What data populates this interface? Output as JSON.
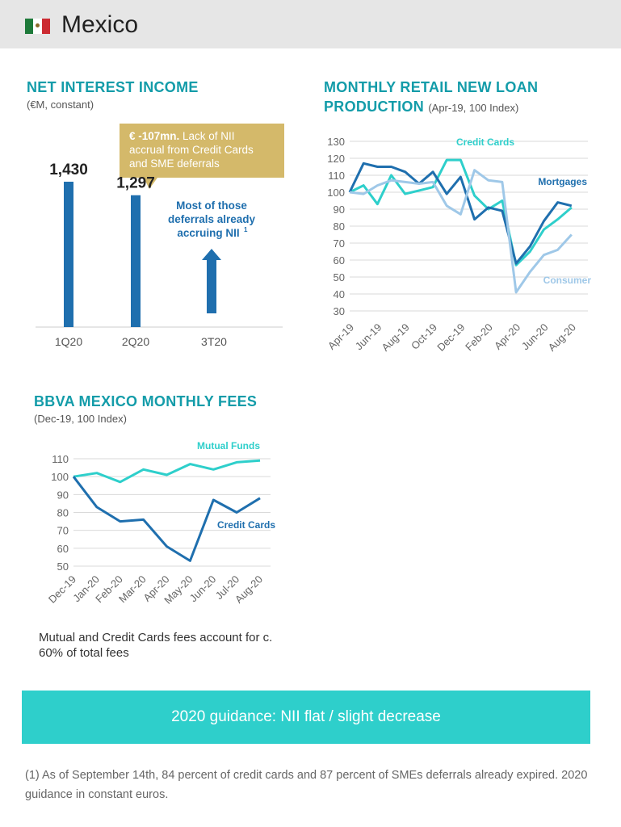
{
  "header": {
    "title": "Mexico",
    "flag_icon": "mexico-flag-icon"
  },
  "nii": {
    "title": "NET INTEREST INCOME",
    "subtitle": "(€M, constant)",
    "callout_bold": "€ -107mn.",
    "callout_text": " Lack of NII accrual from Credit Cards and SME deferrals",
    "arrow_label": [
      "Most of those",
      "deferrals already",
      "accruing NII"
    ],
    "arrow_sup": "1"
  },
  "loans": {
    "title_line1": "MONTHLY RETAIL NEW LOAN",
    "title_line2": "PRODUCTION",
    "subtitle": "(Apr-19, 100 Index)"
  },
  "fees": {
    "title": "BBVA MEXICO MONTHLY FEES",
    "subtitle": "(Dec-19, 100 Index)"
  },
  "note": "Mutual and Credit Cards fees account for c. 60% of total fees",
  "banner": "2020 guidance: NII flat / slight decrease",
  "footnote": "(1) As of September 14th, 84 percent of credit cards and 87 percent of SMEs deferrals already expired. 2020 guidance in constant euros.",
  "colors": {
    "accent": "#139ca9",
    "dark_blue": "#1f6fae",
    "teal": "#2ecfcb",
    "light_blue": "#9fc8e8",
    "gold": "#d4b96a"
  },
  "chart_data": [
    {
      "type": "bar",
      "categories": [
        "1Q20",
        "2Q20",
        "3T20"
      ],
      "values": [
        1430,
        1297,
        null
      ],
      "value_labels": [
        "1,430",
        "1,297",
        ""
      ],
      "ylim": [
        0,
        1600
      ]
    },
    {
      "type": "line",
      "x": [
        "Apr-19",
        "May-19",
        "Jun-19",
        "Jul-19",
        "Aug-19",
        "Sep-19",
        "Oct-19",
        "Nov-19",
        "Dec-19",
        "Jan-20",
        "Feb-20",
        "Mar-20",
        "Apr-20",
        "May-20",
        "Jun-20",
        "Jul-20",
        "Aug-20",
        "Sep-20"
      ],
      "x_tick_labels": [
        "Apr-19",
        "Jun-19",
        "Aug-19",
        "Oct-19",
        "Dec-19",
        "Feb-20",
        "Apr-20",
        "Jun-20",
        "Aug-20"
      ],
      "ylim": [
        30,
        130
      ],
      "y_ticks": [
        30,
        40,
        50,
        60,
        70,
        80,
        90,
        100,
        110,
        120,
        130
      ],
      "grid": true,
      "series": [
        {
          "name": "Credit Cards",
          "color": "#2ecfcb",
          "values": [
            100,
            104,
            93,
            110,
            99,
            101,
            103,
            119,
            119,
            98,
            90,
            95,
            57,
            65,
            78,
            84,
            91,
            null
          ]
        },
        {
          "name": "Mortgages",
          "color": "#1f6fae",
          "values": [
            100,
            117,
            115,
            115,
            112,
            105,
            112,
            99,
            109,
            84,
            91,
            89,
            58,
            68,
            83,
            94,
            92,
            null
          ]
        },
        {
          "name": "Consumer",
          "color": "#9fc8e8",
          "values": [
            100,
            99,
            104,
            107,
            106,
            105,
            106,
            92,
            87,
            113,
            107,
            106,
            41,
            53,
            63,
            66,
            75,
            null
          ]
        }
      ]
    },
    {
      "type": "line",
      "x": [
        "Dec-19",
        "Jan-20",
        "Feb-20",
        "Mar-20",
        "Apr-20",
        "May-20",
        "Jun-20",
        "Jul-20",
        "Aug-20"
      ],
      "ylim": [
        50,
        110
      ],
      "y_ticks": [
        50,
        60,
        70,
        80,
        90,
        100,
        110
      ],
      "grid": true,
      "series": [
        {
          "name": "Mutual Funds",
          "color": "#2ecfcb",
          "values": [
            100,
            102,
            97,
            104,
            101,
            107,
            104,
            108,
            109
          ]
        },
        {
          "name": "Credit Cards",
          "color": "#1f6fae",
          "values": [
            100,
            83,
            75,
            76,
            61,
            53,
            87,
            80,
            88
          ]
        }
      ]
    }
  ]
}
